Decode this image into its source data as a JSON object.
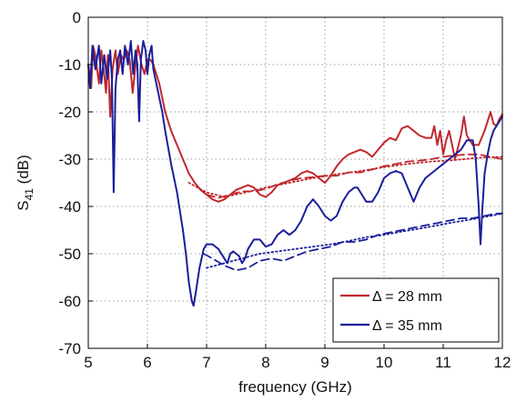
{
  "chart_data": {
    "type": "line",
    "title": "",
    "xlabel": "frequency (GHz)",
    "ylabel_main": "S",
    "ylabel_sub": "41",
    "ylabel_unit": " (dB)",
    "xlim": [
      5,
      12
    ],
    "ylim": [
      -70,
      0
    ],
    "xticks": [
      5,
      6,
      7,
      8,
      9,
      10,
      11,
      12
    ],
    "yticks": [
      0,
      -10,
      -20,
      -30,
      -40,
      -50,
      -60,
      -70
    ],
    "grid": true,
    "grid_style": "dotted",
    "legend_position": "bottom-right",
    "legend": [
      {
        "label": "Δ = 28 mm",
        "color": "#c0282d"
      },
      {
        "label": "Δ = 35 mm",
        "color": "#1a1f9a"
      }
    ],
    "series": [
      {
        "color": "#c0282d",
        "style": "solid",
        "points": [
          [
            5.0,
            -10
          ],
          [
            5.05,
            -15
          ],
          [
            5.08,
            -6
          ],
          [
            5.12,
            -8
          ],
          [
            5.18,
            -14
          ],
          [
            5.22,
            -7
          ],
          [
            5.27,
            -12
          ],
          [
            5.3,
            -16
          ],
          [
            5.33,
            -8
          ],
          [
            5.37,
            -21
          ],
          [
            5.41,
            -11
          ],
          [
            5.46,
            -7
          ],
          [
            5.5,
            -12
          ],
          [
            5.55,
            -8
          ],
          [
            5.6,
            -9
          ],
          [
            5.65,
            -7
          ],
          [
            5.7,
            -9
          ],
          [
            5.75,
            -16
          ],
          [
            5.8,
            -10
          ],
          [
            5.84,
            -6
          ],
          [
            5.9,
            -10
          ],
          [
            5.95,
            -12
          ],
          [
            6.0,
            -9
          ],
          [
            6.05,
            -9
          ],
          [
            6.1,
            -10
          ],
          [
            6.2,
            -14
          ],
          [
            6.3,
            -20
          ],
          [
            6.4,
            -24
          ],
          [
            6.5,
            -27
          ],
          [
            6.6,
            -30
          ],
          [
            6.7,
            -33
          ],
          [
            6.8,
            -35
          ],
          [
            6.9,
            -36.5
          ],
          [
            7.0,
            -37.5
          ],
          [
            7.1,
            -38.5
          ],
          [
            7.2,
            -39
          ],
          [
            7.3,
            -38.5
          ],
          [
            7.4,
            -37.5
          ],
          [
            7.5,
            -36.5
          ],
          [
            7.6,
            -36
          ],
          [
            7.7,
            -35.5
          ],
          [
            7.8,
            -36
          ],
          [
            7.9,
            -37.5
          ],
          [
            8.0,
            -38
          ],
          [
            8.1,
            -37
          ],
          [
            8.2,
            -35.5
          ],
          [
            8.3,
            -35
          ],
          [
            8.4,
            -34.5
          ],
          [
            8.5,
            -34
          ],
          [
            8.6,
            -33
          ],
          [
            8.7,
            -32.5
          ],
          [
            8.8,
            -33
          ],
          [
            8.9,
            -34
          ],
          [
            9.0,
            -35
          ],
          [
            9.1,
            -33.5
          ],
          [
            9.2,
            -31.5
          ],
          [
            9.3,
            -30
          ],
          [
            9.4,
            -29
          ],
          [
            9.5,
            -28.5
          ],
          [
            9.6,
            -28
          ],
          [
            9.7,
            -28.5
          ],
          [
            9.8,
            -29.5
          ],
          [
            9.9,
            -28
          ],
          [
            10.0,
            -26.5
          ],
          [
            10.1,
            -25.5
          ],
          [
            10.2,
            -26
          ],
          [
            10.3,
            -23.5
          ],
          [
            10.4,
            -23
          ],
          [
            10.5,
            -24
          ],
          [
            10.6,
            -25
          ],
          [
            10.7,
            -25.5
          ],
          [
            10.8,
            -25.5
          ],
          [
            10.85,
            -23
          ],
          [
            10.9,
            -27
          ],
          [
            10.95,
            -24
          ],
          [
            11.0,
            -29
          ],
          [
            11.05,
            -26
          ],
          [
            11.1,
            -24
          ],
          [
            11.15,
            -27
          ],
          [
            11.2,
            -30
          ],
          [
            11.3,
            -25
          ],
          [
            11.35,
            -21
          ],
          [
            11.4,
            -25
          ],
          [
            11.5,
            -27
          ],
          [
            11.6,
            -27
          ],
          [
            11.7,
            -24
          ],
          [
            11.75,
            -22
          ],
          [
            11.8,
            -20
          ],
          [
            11.85,
            -22.5
          ],
          [
            11.9,
            -23
          ],
          [
            11.95,
            -21.5
          ],
          [
            12.0,
            -20.5
          ]
        ]
      },
      {
        "color": "#c0282d",
        "style": "dashed",
        "points": [
          [
            7.0,
            -37.5
          ],
          [
            7.2,
            -38.2
          ],
          [
            7.4,
            -37.5
          ],
          [
            7.6,
            -36.8
          ],
          [
            7.8,
            -36.8
          ],
          [
            8.0,
            -36.3
          ],
          [
            8.2,
            -35.3
          ],
          [
            8.4,
            -34.6
          ],
          [
            8.6,
            -34
          ],
          [
            8.8,
            -33.8
          ],
          [
            9.0,
            -33.5
          ],
          [
            9.2,
            -33.5
          ],
          [
            9.4,
            -32.8
          ],
          [
            9.6,
            -32.8
          ],
          [
            9.8,
            -32.2
          ],
          [
            10.0,
            -31.5
          ],
          [
            10.2,
            -31
          ],
          [
            10.4,
            -30.5
          ],
          [
            10.6,
            -30.3
          ],
          [
            10.8,
            -30
          ],
          [
            11.0,
            -29.5
          ],
          [
            11.2,
            -29.2
          ],
          [
            11.4,
            -29
          ],
          [
            11.6,
            -29
          ],
          [
            11.8,
            -29.5
          ],
          [
            12.0,
            -30
          ]
        ]
      },
      {
        "color": "#c0282d",
        "style": "dotted",
        "points": [
          [
            6.7,
            -35
          ],
          [
            7.0,
            -37
          ],
          [
            7.3,
            -38
          ],
          [
            7.6,
            -37.2
          ],
          [
            8.0,
            -36
          ],
          [
            8.4,
            -35
          ],
          [
            8.8,
            -34
          ],
          [
            9.2,
            -33.2
          ],
          [
            9.6,
            -32.5
          ],
          [
            10.0,
            -31.7
          ],
          [
            10.4,
            -31
          ],
          [
            10.8,
            -30.5
          ],
          [
            11.2,
            -30.2
          ],
          [
            11.6,
            -29.7
          ],
          [
            12.0,
            -29.5
          ]
        ]
      },
      {
        "color": "#1a1f9a",
        "style": "solid",
        "points": [
          [
            5.0,
            -10
          ],
          [
            5.03,
            -15
          ],
          [
            5.07,
            -6
          ],
          [
            5.12,
            -11
          ],
          [
            5.18,
            -6
          ],
          [
            5.22,
            -14
          ],
          [
            5.27,
            -8
          ],
          [
            5.32,
            -13
          ],
          [
            5.37,
            -7
          ],
          [
            5.4,
            -13
          ],
          [
            5.43,
            -37
          ],
          [
            5.46,
            -15
          ],
          [
            5.5,
            -9
          ],
          [
            5.54,
            -7
          ],
          [
            5.58,
            -12
          ],
          [
            5.62,
            -6
          ],
          [
            5.67,
            -10
          ],
          [
            5.72,
            -5
          ],
          [
            5.76,
            -12
          ],
          [
            5.8,
            -7
          ],
          [
            5.83,
            -10
          ],
          [
            5.86,
            -22
          ],
          [
            5.89,
            -9
          ],
          [
            5.93,
            -5
          ],
          [
            5.97,
            -7
          ],
          [
            6.0,
            -12
          ],
          [
            6.03,
            -8
          ],
          [
            6.07,
            -6
          ],
          [
            6.1,
            -11
          ],
          [
            6.15,
            -14
          ],
          [
            6.2,
            -17
          ],
          [
            6.25,
            -20
          ],
          [
            6.3,
            -24
          ],
          [
            6.4,
            -31
          ],
          [
            6.5,
            -37
          ],
          [
            6.6,
            -45
          ],
          [
            6.65,
            -50
          ],
          [
            6.7,
            -56
          ],
          [
            6.75,
            -60
          ],
          [
            6.78,
            -61
          ],
          [
            6.82,
            -58
          ],
          [
            6.88,
            -53
          ],
          [
            6.95,
            -49
          ],
          [
            7.0,
            -48
          ],
          [
            7.1,
            -48
          ],
          [
            7.2,
            -49
          ],
          [
            7.3,
            -51
          ],
          [
            7.35,
            -52
          ],
          [
            7.4,
            -50
          ],
          [
            7.45,
            -49.5
          ],
          [
            7.55,
            -50.5
          ],
          [
            7.6,
            -52
          ],
          [
            7.65,
            -51
          ],
          [
            7.7,
            -49
          ],
          [
            7.8,
            -47
          ],
          [
            7.9,
            -47
          ],
          [
            8.0,
            -48.5
          ],
          [
            8.1,
            -48
          ],
          [
            8.2,
            -46
          ],
          [
            8.3,
            -45
          ],
          [
            8.4,
            -46
          ],
          [
            8.5,
            -45
          ],
          [
            8.6,
            -43
          ],
          [
            8.7,
            -40
          ],
          [
            8.8,
            -38.5
          ],
          [
            8.9,
            -40
          ],
          [
            9.0,
            -42
          ],
          [
            9.1,
            -43
          ],
          [
            9.2,
            -42
          ],
          [
            9.3,
            -39
          ],
          [
            9.4,
            -37
          ],
          [
            9.5,
            -36
          ],
          [
            9.55,
            -36
          ],
          [
            9.6,
            -37
          ],
          [
            9.7,
            -39
          ],
          [
            9.8,
            -39
          ],
          [
            9.9,
            -37
          ],
          [
            10.0,
            -34
          ],
          [
            10.1,
            -33
          ],
          [
            10.2,
            -32.5
          ],
          [
            10.3,
            -33
          ],
          [
            10.4,
            -36
          ],
          [
            10.5,
            -39
          ],
          [
            10.6,
            -36
          ],
          [
            10.7,
            -34
          ],
          [
            10.8,
            -33
          ],
          [
            10.9,
            -32
          ],
          [
            11.0,
            -31
          ],
          [
            11.1,
            -30
          ],
          [
            11.2,
            -29
          ],
          [
            11.3,
            -28
          ],
          [
            11.4,
            -26
          ],
          [
            11.5,
            -26
          ],
          [
            11.55,
            -30
          ],
          [
            11.6,
            -40
          ],
          [
            11.63,
            -48
          ],
          [
            11.66,
            -41
          ],
          [
            11.7,
            -33
          ],
          [
            11.75,
            -29
          ],
          [
            11.8,
            -26
          ],
          [
            11.85,
            -24
          ],
          [
            11.9,
            -23
          ],
          [
            12.0,
            -21
          ]
        ]
      },
      {
        "color": "#1a1f9a",
        "style": "dashed",
        "points": [
          [
            6.95,
            -50
          ],
          [
            7.1,
            -51
          ],
          [
            7.3,
            -52.5
          ],
          [
            7.5,
            -53.5
          ],
          [
            7.7,
            -53
          ],
          [
            7.9,
            -51.5
          ],
          [
            8.1,
            -51
          ],
          [
            8.3,
            -51.5
          ],
          [
            8.5,
            -50.5
          ],
          [
            8.7,
            -49.5
          ],
          [
            8.9,
            -49
          ],
          [
            9.1,
            -48.5
          ],
          [
            9.3,
            -47.5
          ],
          [
            9.5,
            -47.5
          ],
          [
            9.7,
            -47
          ],
          [
            9.9,
            -46
          ],
          [
            10.1,
            -45.5
          ],
          [
            10.3,
            -45
          ],
          [
            10.5,
            -44.5
          ],
          [
            10.7,
            -44
          ],
          [
            10.9,
            -43.5
          ],
          [
            11.1,
            -43
          ],
          [
            11.3,
            -42.5
          ],
          [
            11.5,
            -42.5
          ],
          [
            11.7,
            -42
          ],
          [
            11.9,
            -41.5
          ],
          [
            12.0,
            -41.5
          ]
        ]
      },
      {
        "color": "#1a1f9a",
        "style": "dotted",
        "points": [
          [
            7.0,
            -53
          ],
          [
            7.3,
            -52
          ],
          [
            7.6,
            -51
          ],
          [
            7.9,
            -50
          ],
          [
            8.2,
            -49.5
          ],
          [
            8.5,
            -49
          ],
          [
            8.8,
            -48.5
          ],
          [
            9.1,
            -48
          ],
          [
            9.4,
            -47.3
          ],
          [
            9.7,
            -46.5
          ],
          [
            10.0,
            -46
          ],
          [
            10.3,
            -45.3
          ],
          [
            10.6,
            -44.7
          ],
          [
            10.9,
            -44
          ],
          [
            11.2,
            -43.3
          ],
          [
            11.5,
            -42.7
          ],
          [
            11.8,
            -42
          ],
          [
            12.0,
            -41.5
          ]
        ]
      }
    ]
  }
}
